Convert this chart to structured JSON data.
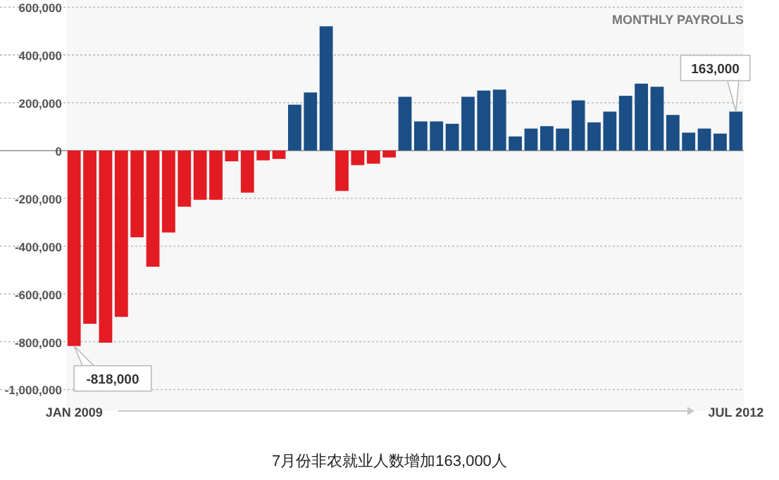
{
  "chart_data": {
    "type": "bar",
    "categories": [
      "JAN 2009",
      null,
      null,
      null,
      null,
      null,
      null,
      null,
      null,
      null,
      null,
      null,
      null,
      null,
      null,
      null,
      null,
      null,
      null,
      null,
      null,
      null,
      null,
      null,
      null,
      null,
      null,
      null,
      null,
      null,
      null,
      null,
      null,
      null,
      null,
      null,
      null,
      null,
      null,
      null,
      null,
      null,
      "JUL 2012"
    ],
    "values": [
      -818000,
      -725000,
      -804000,
      -696000,
      -363000,
      -486000,
      -343000,
      -235000,
      -206000,
      -206000,
      -45000,
      -176000,
      -41000,
      -35000,
      192000,
      243000,
      520000,
      -169000,
      -61000,
      -55000,
      -29000,
      225000,
      122000,
      122000,
      112000,
      225000,
      251000,
      255000,
      59000,
      92000,
      102000,
      92000,
      210000,
      118000,
      163000,
      229000,
      280000,
      267000,
      149000,
      75000,
      92000,
      71000,
      163000
    ],
    "colors": [
      "#e31b23",
      "#e31b23",
      "#e31b23",
      "#e31b23",
      "#e31b23",
      "#e31b23",
      "#e31b23",
      "#e31b23",
      "#e31b23",
      "#e31b23",
      "#e31b23",
      "#e31b23",
      "#e31b23",
      "#e31b23",
      "#1b4e85",
      "#1b4e85",
      "#1b4e85",
      "#e31b23",
      "#e31b23",
      "#e31b23",
      "#e31b23",
      "#1b4e85",
      "#1b4e85",
      "#1b4e85",
      "#1b4e85",
      "#1b4e85",
      "#1b4e85",
      "#1b4e85",
      "#1b4e85",
      "#1b4e85",
      "#1b4e85",
      "#1b4e85",
      "#1b4e85",
      "#1b4e85",
      "#1b4e85",
      "#1b4e85",
      "#1b4e85",
      "#1b4e85",
      "#1b4e85",
      "#1b4e85",
      "#1b4e85",
      "#1b4e85",
      "#1b4e85"
    ],
    "ylim": [
      -1090000,
      630000
    ],
    "yticks": [
      {
        "value": 600000,
        "label": "600,000"
      },
      {
        "value": 400000,
        "label": "400,000"
      },
      {
        "value": 200000,
        "label": "200,000"
      },
      0,
      {
        "value": -200000,
        "label": "-200,000"
      },
      {
        "value": -400000,
        "label": "-400,000"
      },
      {
        "value": -600000,
        "label": "-600,000"
      },
      {
        "value": -800000,
        "label": "-800,000"
      },
      {
        "value": -1000000,
        "label": "-1,000,000"
      }
    ],
    "grid": "y",
    "annotations": [
      {
        "text": "-818,000",
        "x": "JAN 2009",
        "y": -818000
      },
      {
        "text": "163,000",
        "x": "JUL 2012",
        "y": 163000
      },
      "MONTHLY PAYROLLS",
      "7月份非农就业人数增加163,000人"
    ]
  }
}
